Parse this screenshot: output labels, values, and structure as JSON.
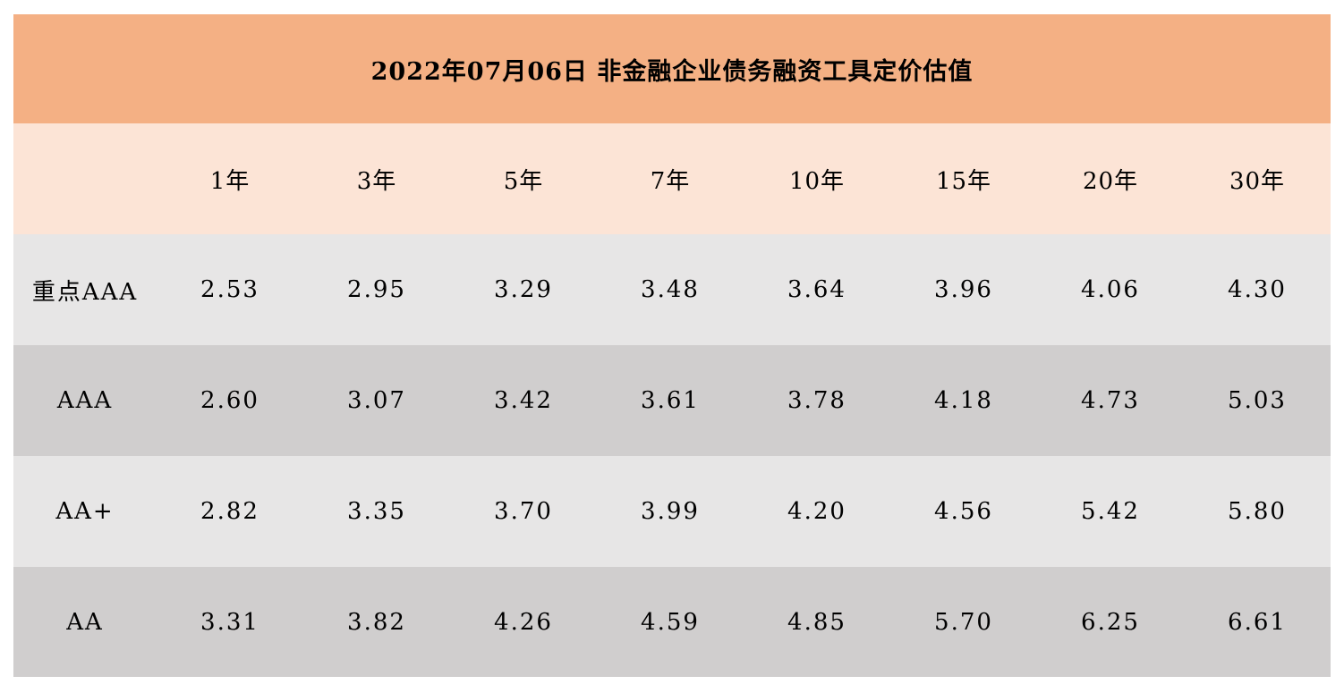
{
  "colors": {
    "title_bg": "#f4b084",
    "header_bg": "#fce4d6",
    "row_light": "#e7e6e6",
    "row_dark": "#d0cece"
  },
  "chart_data": {
    "type": "table",
    "title": "2022年07月06日  非金融企业债务融资工具定价估值",
    "columns": [
      "",
      "1年",
      "3年",
      "5年",
      "7年",
      "10年",
      "15年",
      "20年",
      "30年"
    ],
    "rows": [
      {
        "label": "重点AAA",
        "values": [
          "2.53",
          "2.95",
          "3.29",
          "3.48",
          "3.64",
          "3.96",
          "4.06",
          "4.30"
        ]
      },
      {
        "label": "AAA",
        "values": [
          "2.60",
          "3.07",
          "3.42",
          "3.61",
          "3.78",
          "4.18",
          "4.73",
          "5.03"
        ]
      },
      {
        "label": "AA+",
        "values": [
          "2.82",
          "3.35",
          "3.70",
          "3.99",
          "4.20",
          "4.56",
          "5.42",
          "5.80"
        ]
      },
      {
        "label": "AA",
        "values": [
          "3.31",
          "3.82",
          "4.26",
          "4.59",
          "4.85",
          "5.70",
          "6.25",
          "6.61"
        ]
      }
    ]
  }
}
